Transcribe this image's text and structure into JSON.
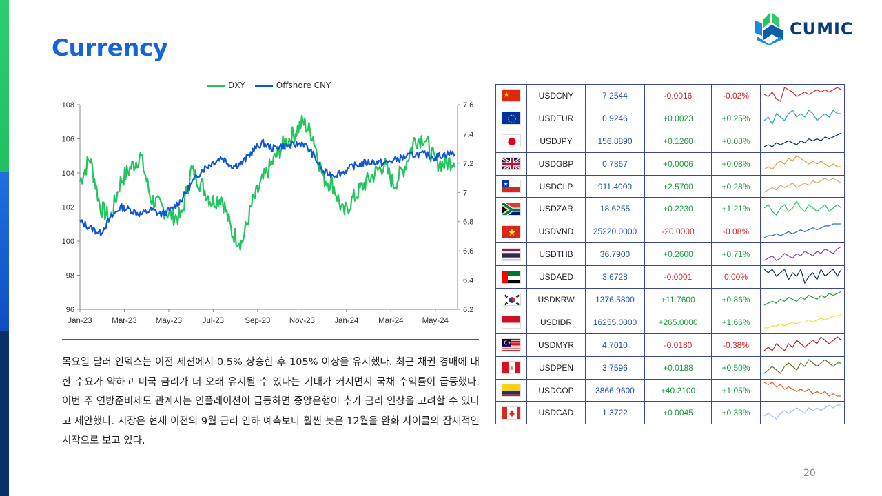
{
  "page": {
    "title": "Currency",
    "page_number": "20"
  },
  "logo": {
    "text": "CUMIC"
  },
  "colors": {
    "dxy": "#22c55e",
    "cny": "#1056d6",
    "title": "#1565d8"
  },
  "paragraph": "목요일 달러 인덱스는 이전 세션에서 0.5% 상승한 후 105% 이상을 유지했다. 최근 채권 경매에 대한 수요가 약하고 미국 금리가 더 오래 유지될 수 있다는 기대가 커지면서 국채 수익률이 급등했다. 이번 주 연방준비제도 관계자는 인플레이션이 급등하면 중앙은행이 추가 금리 인상을 고려할 수 있다고 제안했다. 시장은 현재 이전의 9월 금리 인하 예측보다 훨씬 늦은 12월을 완화 사이클의 잠재적인 시작으로 보고 있다.",
  "chart_data": {
    "type": "line",
    "title": "",
    "xlabel": "",
    "x_tick_labels": [
      "Jan-23",
      "Mar-23",
      "May-23",
      "Jul-23",
      "Sep-23",
      "Nov-23",
      "Jan-24",
      "Mar-24",
      "May-24"
    ],
    "y_left": {
      "ylim": [
        96,
        108
      ],
      "ticks": [
        96,
        98,
        100,
        102,
        104,
        106,
        108
      ]
    },
    "y_right": {
      "ylim": [
        6.2,
        7.6
      ],
      "ticks": [
        "6.2",
        "6.4",
        "6.6",
        "6.8",
        "7",
        "7.2",
        "7.4",
        "7.6"
      ]
    },
    "legend_position": "top-center",
    "series": [
      {
        "name": "DXY",
        "axis": "left",
        "color": "#22c55e",
        "x": [
          "Jan-23",
          "Jan-23",
          "Jan-23",
          "Feb-23",
          "Feb-23",
          "Mar-23",
          "Mar-23",
          "Mar-23",
          "Apr-23",
          "Apr-23",
          "May-23",
          "May-23",
          "Jun-23",
          "Jun-23",
          "Jul-23",
          "Jul-23",
          "Jul-23",
          "Aug-23",
          "Aug-23",
          "Sep-23",
          "Sep-23",
          "Oct-23",
          "Oct-23",
          "Nov-23",
          "Nov-23",
          "Dec-23",
          "Dec-23",
          "Jan-24",
          "Jan-24",
          "Feb-24",
          "Feb-24",
          "Mar-24",
          "Mar-24",
          "Apr-24",
          "Apr-24",
          "May-24",
          "May-24",
          "Jun-24"
        ],
        "values": [
          103.5,
          104.9,
          102.0,
          101.3,
          103.5,
          104.3,
          105.0,
          102.5,
          102.0,
          101.5,
          101.4,
          104.2,
          103.3,
          102.3,
          102.6,
          100.5,
          99.9,
          102.2,
          103.5,
          104.6,
          105.6,
          106.2,
          107.0,
          106.2,
          103.7,
          103.3,
          101.6,
          102.5,
          103.3,
          103.9,
          104.5,
          103.3,
          104.3,
          105.9,
          106.1,
          104.7,
          104.5,
          104.8
        ]
      },
      {
        "name": "Offshore CNY",
        "axis": "right",
        "color": "#1056d6",
        "x": [
          "Jan-23",
          "Jan-23",
          "Jan-23",
          "Feb-23",
          "Feb-23",
          "Mar-23",
          "Mar-23",
          "Mar-23",
          "Apr-23",
          "Apr-23",
          "May-23",
          "May-23",
          "Jun-23",
          "Jun-23",
          "Jul-23",
          "Jul-23",
          "Jul-23",
          "Aug-23",
          "Aug-23",
          "Sep-23",
          "Sep-23",
          "Oct-23",
          "Oct-23",
          "Nov-23",
          "Nov-23",
          "Dec-23",
          "Dec-23",
          "Jan-24",
          "Jan-24",
          "Feb-24",
          "Feb-24",
          "Mar-24",
          "Mar-24",
          "Apr-24",
          "Apr-24",
          "May-24",
          "May-24",
          "Jun-24"
        ],
        "values": [
          6.8,
          6.76,
          6.72,
          6.82,
          6.9,
          6.88,
          6.85,
          6.88,
          6.85,
          6.88,
          6.95,
          7.06,
          7.15,
          7.2,
          7.24,
          7.18,
          7.2,
          7.28,
          7.34,
          7.3,
          7.32,
          7.32,
          7.34,
          7.26,
          7.14,
          7.12,
          7.14,
          7.18,
          7.2,
          7.21,
          7.2,
          7.22,
          7.24,
          7.26,
          7.26,
          7.24,
          7.26,
          7.27
        ]
      }
    ]
  },
  "fx_table": {
    "rows": [
      {
        "flag": "china-flag",
        "symbol": "USDCNY",
        "rate": "7.2544",
        "change": "-0.0016",
        "pct": "-0.02%",
        "spark_color": "#d8262e",
        "spark": [
          5,
          4,
          6,
          3,
          2,
          8,
          7,
          6,
          4,
          5,
          6,
          5,
          6,
          7,
          6,
          7,
          6,
          7,
          8,
          7
        ]
      },
      {
        "flag": "eu-flag",
        "symbol": "USDEUR",
        "rate": "0.9246",
        "change": "+0.0023",
        "pct": "+0.25%",
        "spark_color": "#2a9fd8",
        "spark": [
          4,
          5,
          3,
          6,
          5,
          4,
          6,
          7,
          5,
          6,
          5,
          7,
          6,
          4,
          5,
          6,
          5,
          7,
          6,
          6
        ]
      },
      {
        "flag": "japan-flag",
        "symbol": "USDJPY",
        "rate": "156.8890",
        "change": "+0.1260",
        "pct": "+0.08%",
        "spark_color": "#0b2f6a",
        "spark": [
          2,
          3,
          2,
          4,
          3,
          4,
          5,
          4,
          3,
          5,
          4,
          6,
          5,
          6,
          5,
          7,
          6,
          7,
          8,
          9
        ]
      },
      {
        "flag": "uk-flag",
        "symbol": "USDGBP",
        "rate": "0.7867",
        "change": "+0.0006",
        "pct": "+0.08%",
        "spark_color": "#e69a2e",
        "spark": [
          3,
          4,
          3,
          5,
          6,
          5,
          7,
          6,
          8,
          7,
          6,
          5,
          6,
          5,
          6,
          5,
          4,
          5,
          4,
          4
        ]
      },
      {
        "flag": "chile-flag",
        "symbol": "USDCLP",
        "rate": "911.4000",
        "change": "+2.5700",
        "pct": "+0.28%",
        "spark_color": "#e6a06a",
        "spark": [
          2,
          3,
          4,
          3,
          5,
          4,
          5,
          6,
          4,
          5,
          6,
          5,
          7,
          6,
          7,
          8,
          7,
          8,
          7,
          6
        ]
      },
      {
        "flag": "south-africa-flag",
        "symbol": "USDZAR",
        "rate": "18.6255",
        "change": "+0.2230",
        "pct": "+1.21%",
        "spark_color": "#22c55e",
        "spark": [
          6,
          7,
          5,
          4,
          6,
          7,
          5,
          6,
          8,
          6,
          5,
          7,
          6,
          5,
          6,
          7,
          5,
          6,
          7,
          6
        ]
      },
      {
        "flag": "vietnam-flag",
        "symbol": "USDVND",
        "rate": "25220.0000",
        "change": "-20.0000",
        "pct": "-0.08%",
        "spark_color": "#1f6fe0",
        "spark": [
          1,
          2,
          2,
          3,
          2,
          3,
          4,
          3,
          4,
          5,
          4,
          5,
          6,
          5,
          6,
          7,
          7,
          8,
          8,
          8
        ]
      },
      {
        "flag": "thailand-flag",
        "symbol": "USDTHB",
        "rate": "36.7900",
        "change": "+0.2600",
        "pct": "+0.71%",
        "spark_color": "#8e3fb8",
        "spark": [
          3,
          4,
          5,
          3,
          4,
          6,
          5,
          4,
          6,
          5,
          7,
          6,
          5,
          7,
          6,
          8,
          7,
          6,
          8,
          9
        ]
      },
      {
        "flag": "uae-flag",
        "symbol": "USDAED",
        "rate": "3.6728",
        "change": "-0.0001",
        "pct": "0.00%",
        "spark_color": "#0b2f6a",
        "spark": [
          7,
          6,
          7,
          5,
          6,
          7,
          4,
          6,
          5,
          7,
          3,
          5,
          6,
          4,
          7,
          5,
          6,
          7,
          5,
          7
        ]
      },
      {
        "flag": "korea-flag",
        "symbol": "USDKRW",
        "rate": "1376.5800",
        "change": "+11.7600",
        "pct": "+0.86%",
        "spark_color": "#1a9e3a",
        "spark": [
          2,
          3,
          4,
          3,
          5,
          4,
          6,
          5,
          4,
          6,
          5,
          7,
          6,
          5,
          7,
          6,
          8,
          7,
          8,
          9
        ]
      },
      {
        "flag": "indonesia-flag",
        "symbol": "USDIDR",
        "rate": "16255.0000",
        "change": "+265.0000",
        "pct": "+1.66%",
        "spark_color": "#e8e23a",
        "spark": [
          2,
          2,
          3,
          3,
          4,
          3,
          4,
          5,
          4,
          5,
          5,
          6,
          5,
          6,
          7,
          6,
          7,
          8,
          8,
          9
        ]
      },
      {
        "flag": "malaysia-flag",
        "symbol": "USDMYR",
        "rate": "4.7010",
        "change": "-0.0180",
        "pct": "-0.38%",
        "spark_color": "#b8242a",
        "spark": [
          4,
          5,
          4,
          6,
          5,
          4,
          6,
          5,
          7,
          6,
          5,
          6,
          7,
          6,
          8,
          7,
          6,
          7,
          8,
          7
        ]
      },
      {
        "flag": "peru-flag",
        "symbol": "USDPEN",
        "rate": "3.7596",
        "change": "+0.0188",
        "pct": "+0.50%",
        "spark_color": "#5a7a2a",
        "spark": [
          3,
          4,
          5,
          4,
          3,
          5,
          6,
          5,
          4,
          6,
          5,
          7,
          6,
          5,
          6,
          7,
          6,
          5,
          6,
          6
        ]
      },
      {
        "flag": "colombia-flag",
        "symbol": "USDCOP",
        "rate": "3866.9600",
        "change": "+40.2100",
        "pct": "+1.05%",
        "spark_color": "#d8622a",
        "spark": [
          8,
          7,
          8,
          6,
          7,
          5,
          6,
          5,
          4,
          5,
          4,
          5,
          3,
          4,
          3,
          4,
          2,
          3,
          2,
          2
        ]
      },
      {
        "flag": "canada-flag",
        "symbol": "USDCAD",
        "rate": "1.3722",
        "change": "+0.0045",
        "pct": "+0.33%",
        "spark_color": "#9ec0e6",
        "spark": [
          3,
          4,
          3,
          2,
          4,
          5,
          4,
          5,
          6,
          5,
          4,
          6,
          5,
          6,
          5,
          6,
          7,
          6,
          7,
          7
        ]
      }
    ]
  }
}
